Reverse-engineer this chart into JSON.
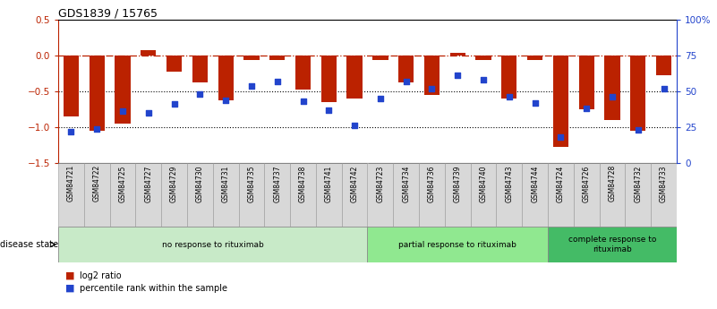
{
  "title": "GDS1839 / 15765",
  "samples": [
    "GSM84721",
    "GSM84722",
    "GSM84725",
    "GSM84727",
    "GSM84729",
    "GSM84730",
    "GSM84731",
    "GSM84735",
    "GSM84737",
    "GSM84738",
    "GSM84741",
    "GSM84742",
    "GSM84723",
    "GSM84734",
    "GSM84736",
    "GSM84739",
    "GSM84740",
    "GSM84743",
    "GSM84744",
    "GSM84724",
    "GSM84726",
    "GSM84728",
    "GSM84732",
    "GSM84733"
  ],
  "log2_ratio": [
    -0.85,
    -1.05,
    -0.95,
    0.08,
    -0.22,
    -0.38,
    -0.62,
    -0.06,
    -0.06,
    -0.47,
    -0.65,
    -0.6,
    -0.06,
    -0.38,
    -0.55,
    0.04,
    -0.06,
    -0.6,
    -0.06,
    -1.28,
    -0.75,
    -0.9,
    -1.05,
    -0.28
  ],
  "percentile": [
    22,
    24,
    36,
    35,
    41,
    48,
    44,
    54,
    57,
    43,
    37,
    26,
    45,
    57,
    52,
    61,
    58,
    46,
    42,
    18,
    38,
    46,
    23,
    52
  ],
  "groups": [
    {
      "label": "no response to rituximab",
      "start": 0,
      "end": 12,
      "color": "#c8eac8"
    },
    {
      "label": "partial response to rituximab",
      "start": 12,
      "end": 19,
      "color": "#90e890"
    },
    {
      "label": "complete response to\nrituximab",
      "start": 19,
      "end": 24,
      "color": "#44bb66"
    }
  ],
  "bar_color": "#bb2200",
  "dot_color": "#2244cc",
  "ylim_left": [
    -1.5,
    0.5
  ],
  "ylim_right": [
    0,
    100
  ],
  "right_ticks": [
    0,
    25,
    50,
    75,
    100
  ],
  "right_tick_labels": [
    "0",
    "25",
    "50",
    "75",
    "100%"
  ]
}
